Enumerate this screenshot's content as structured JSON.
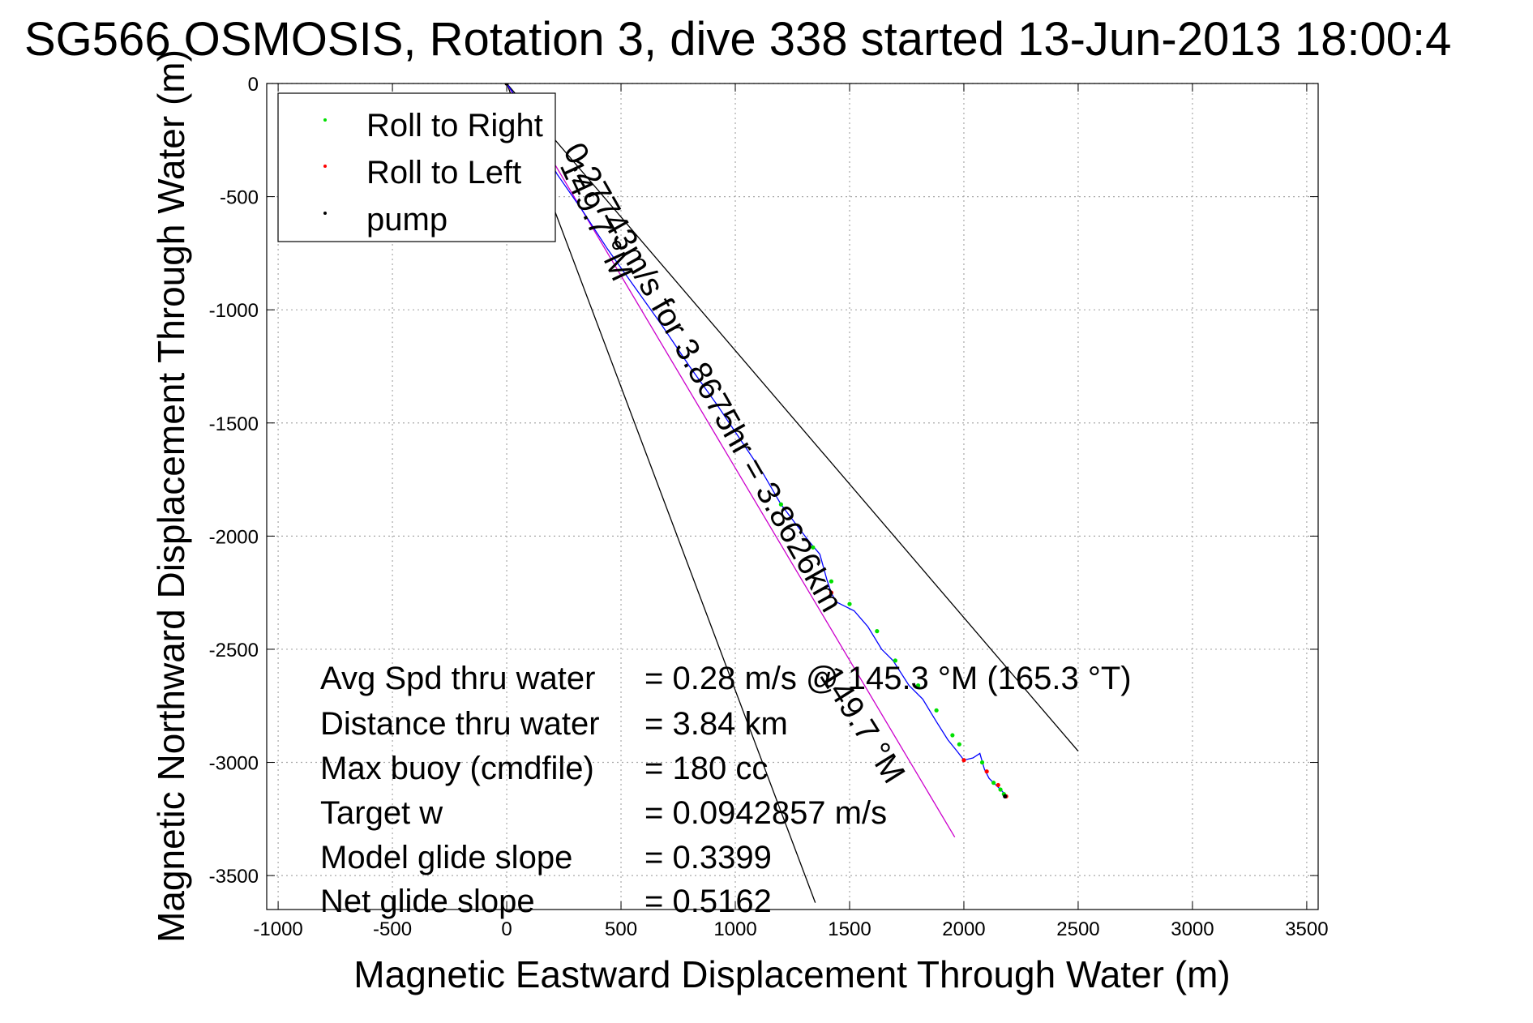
{
  "chart_data": {
    "type": "line",
    "title": "SG566 OSMOSIS, Rotation 3, dive 338 started 13-Jun-2013 18:00:4",
    "xlabel": "Magnetic Eastward Displacement Through Water (m)",
    "ylabel": "Magnetic Northward Displacement Through Water (m)",
    "xlim": [
      -1050,
      3550
    ],
    "ylim": [
      -3650,
      0
    ],
    "xticks": [
      -1000,
      -500,
      0,
      500,
      1000,
      1500,
      2000,
      2500,
      3000,
      3500
    ],
    "yticks": [
      0,
      -500,
      -1000,
      -1500,
      -2000,
      -2500,
      -3000,
      -3500
    ],
    "grid": true,
    "legend_position": "top-left",
    "legend": [
      {
        "label": "Roll to Right",
        "color": "#00e000"
      },
      {
        "label": "Roll to Left",
        "color": "#ff0000"
      },
      {
        "label": "pump",
        "color": "#000000"
      }
    ],
    "series": [
      {
        "name": "track",
        "color": "#0000ff",
        "x": [
          0,
          40,
          120,
          220,
          330,
          440,
          560,
          680,
          800,
          920,
          1040,
          1120,
          1200,
          1260,
          1320,
          1370,
          1400,
          1420,
          1440,
          1480,
          1520,
          1580,
          1640,
          1690,
          1760,
          1820,
          1880,
          1930,
          1970,
          2000,
          2040,
          2070,
          2090,
          2110,
          2130,
          2150,
          2170,
          2185
        ],
        "y": [
          0,
          -60,
          -220,
          -400,
          -560,
          -730,
          -900,
          -1070,
          -1250,
          -1420,
          -1600,
          -1720,
          -1860,
          -1940,
          -2020,
          -2080,
          -2190,
          -2250,
          -2290,
          -2310,
          -2330,
          -2400,
          -2500,
          -2550,
          -2660,
          -2720,
          -2820,
          -2900,
          -2950,
          -2990,
          -2980,
          -2960,
          -3030,
          -3070,
          -3090,
          -3110,
          -3130,
          -3150
        ]
      }
    ],
    "roll_right_points": {
      "x": [
        0,
        1200,
        1340,
        1420,
        1500,
        1620,
        1700,
        1800,
        1880,
        1950,
        1980,
        2080,
        2130,
        2160,
        2175
      ],
      "y": [
        0,
        -1860,
        -2050,
        -2200,
        -2300,
        -2420,
        -2550,
        -2660,
        -2770,
        -2880,
        -2920,
        -3000,
        -3090,
        -3120,
        -3140
      ]
    },
    "roll_left_points": {
      "x": [
        0,
        1420,
        2000,
        2100,
        2150,
        2185
      ],
      "y": [
        0,
        -2250,
        -2990,
        -3040,
        -3100,
        -3150
      ]
    },
    "pump_points": {
      "x": [
        0,
        2180
      ],
      "y": [
        0,
        -3150
      ]
    },
    "heading_line": {
      "color": "#cc00cc",
      "x": [
        0,
        1960
      ],
      "y": [
        0,
        -3330
      ]
    },
    "cone_lines": [
      {
        "color": "#000000",
        "x": [
          0,
          1350
        ],
        "y": [
          0,
          -3620
        ]
      },
      {
        "color": "#000000",
        "x": [
          0,
          2500
        ],
        "y": [
          0,
          -2950
        ]
      }
    ],
    "annotations": {
      "along_track": "0.27743m/s for 3.8675hr = 3.8626km",
      "heading_near": "149.7 °M",
      "heading_far": "149.7 °M"
    },
    "stats": [
      {
        "label": "Avg Spd thru water",
        "value": "=  0.28 m/s @ 145.3 °M (165.3 °T)"
      },
      {
        "label": "Distance thru water",
        "value": "=  3.84 km"
      },
      {
        "label": "Max buoy (cmdfile)",
        "value": "= 180 cc"
      },
      {
        "label": "Target w",
        "value": "= 0.0942857 m/s"
      },
      {
        "label": "Model glide slope",
        "value": "= 0.3399"
      },
      {
        "label": "Net glide slope",
        "value": "= 0.5162"
      }
    ]
  }
}
